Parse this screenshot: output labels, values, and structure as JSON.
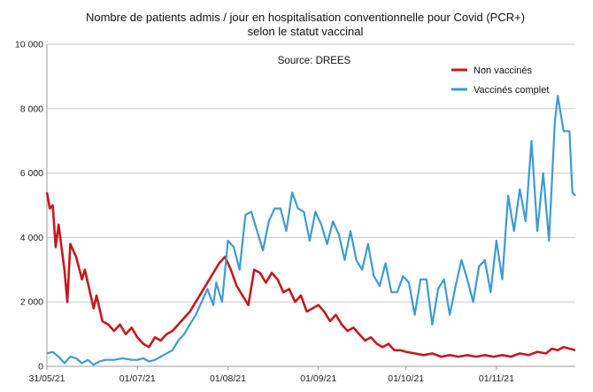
{
  "chart_data": {
    "type": "line",
    "title_line1": "Nombre de patients admis / jour en hospitalisation conventionnelle pour Covid (PCR+)",
    "title_line2": "selon le statut vaccinal",
    "source": "Source: DREES",
    "xlabel": "",
    "ylabel": "",
    "ylim": [
      0,
      10000
    ],
    "yticks": [
      0,
      2000,
      4000,
      6000,
      8000,
      10000
    ],
    "ytick_labels": [
      "0",
      "2 000",
      "4 000",
      "6 000",
      "8 000",
      "10 000"
    ],
    "xlim": [
      "2021-05-31",
      "2021-11-28"
    ],
    "xticks": [
      {
        "date": "2021-05-31",
        "label": "31/05/21"
      },
      {
        "date": "2021-07-01",
        "label": "01/07/21"
      },
      {
        "date": "2021-08-01",
        "label": "01/08/21"
      },
      {
        "date": "2021-09-01",
        "label": "01/09/21"
      },
      {
        "date": "2021-10-01",
        "label": "01/10/21"
      },
      {
        "date": "2021-11-01",
        "label": "01/11/21"
      }
    ],
    "grid": "horizontal",
    "legend_position": "top-right",
    "series": [
      {
        "name": "Non vaccinés",
        "color": "#c8171e",
        "points": [
          [
            "2021-05-31",
            5400
          ],
          [
            "2021-06-01",
            4900
          ],
          [
            "2021-06-02",
            5000
          ],
          [
            "2021-06-03",
            3700
          ],
          [
            "2021-06-04",
            4400
          ],
          [
            "2021-06-06",
            3000
          ],
          [
            "2021-06-07",
            2000
          ],
          [
            "2021-06-08",
            3800
          ],
          [
            "2021-06-10",
            3400
          ],
          [
            "2021-06-12",
            2700
          ],
          [
            "2021-06-13",
            3000
          ],
          [
            "2021-06-15",
            2200
          ],
          [
            "2021-06-16",
            1800
          ],
          [
            "2021-06-17",
            2200
          ],
          [
            "2021-06-19",
            1400
          ],
          [
            "2021-06-21",
            1300
          ],
          [
            "2021-06-23",
            1100
          ],
          [
            "2021-06-25",
            1300
          ],
          [
            "2021-06-27",
            1000
          ],
          [
            "2021-06-29",
            1200
          ],
          [
            "2021-07-01",
            900
          ],
          [
            "2021-07-03",
            700
          ],
          [
            "2021-07-05",
            600
          ],
          [
            "2021-07-07",
            900
          ],
          [
            "2021-07-09",
            800
          ],
          [
            "2021-07-11",
            1000
          ],
          [
            "2021-07-13",
            1100
          ],
          [
            "2021-07-15",
            1300
          ],
          [
            "2021-07-17",
            1500
          ],
          [
            "2021-07-19",
            1700
          ],
          [
            "2021-07-21",
            2000
          ],
          [
            "2021-07-23",
            2300
          ],
          [
            "2021-07-25",
            2600
          ],
          [
            "2021-07-27",
            2900
          ],
          [
            "2021-07-29",
            3200
          ],
          [
            "2021-07-31",
            3400
          ],
          [
            "2021-08-02",
            3000
          ],
          [
            "2021-08-04",
            2500
          ],
          [
            "2021-08-06",
            2200
          ],
          [
            "2021-08-08",
            1900
          ],
          [
            "2021-08-10",
            3000
          ],
          [
            "2021-08-12",
            2900
          ],
          [
            "2021-08-14",
            2600
          ],
          [
            "2021-08-16",
            2900
          ],
          [
            "2021-08-18",
            2700
          ],
          [
            "2021-08-20",
            2300
          ],
          [
            "2021-08-22",
            2400
          ],
          [
            "2021-08-24",
            2000
          ],
          [
            "2021-08-26",
            2200
          ],
          [
            "2021-08-28",
            1700
          ],
          [
            "2021-08-30",
            1800
          ],
          [
            "2021-09-01",
            1900
          ],
          [
            "2021-09-03",
            1700
          ],
          [
            "2021-09-05",
            1400
          ],
          [
            "2021-09-07",
            1600
          ],
          [
            "2021-09-09",
            1300
          ],
          [
            "2021-09-11",
            1100
          ],
          [
            "2021-09-13",
            1200
          ],
          [
            "2021-09-15",
            1000
          ],
          [
            "2021-09-17",
            800
          ],
          [
            "2021-09-19",
            900
          ],
          [
            "2021-09-21",
            700
          ],
          [
            "2021-09-23",
            600
          ],
          [
            "2021-09-25",
            700
          ],
          [
            "2021-09-27",
            500
          ],
          [
            "2021-09-29",
            500
          ],
          [
            "2021-10-01",
            450
          ],
          [
            "2021-10-04",
            400
          ],
          [
            "2021-10-07",
            350
          ],
          [
            "2021-10-10",
            400
          ],
          [
            "2021-10-13",
            300
          ],
          [
            "2021-10-16",
            350
          ],
          [
            "2021-10-19",
            300
          ],
          [
            "2021-10-22",
            350
          ],
          [
            "2021-10-25",
            300
          ],
          [
            "2021-10-28",
            350
          ],
          [
            "2021-10-31",
            300
          ],
          [
            "2021-11-03",
            350
          ],
          [
            "2021-11-06",
            300
          ],
          [
            "2021-11-09",
            400
          ],
          [
            "2021-11-12",
            350
          ],
          [
            "2021-11-15",
            450
          ],
          [
            "2021-11-18",
            400
          ],
          [
            "2021-11-20",
            550
          ],
          [
            "2021-11-22",
            500
          ],
          [
            "2021-11-24",
            600
          ],
          [
            "2021-11-26",
            550
          ],
          [
            "2021-11-28",
            500
          ]
        ]
      },
      {
        "name": "Vaccinés complet",
        "color": "#3c9bd4",
        "points": [
          [
            "2021-05-31",
            400
          ],
          [
            "2021-06-02",
            450
          ],
          [
            "2021-06-04",
            300
          ],
          [
            "2021-06-06",
            100
          ],
          [
            "2021-06-08",
            300
          ],
          [
            "2021-06-10",
            250
          ],
          [
            "2021-06-12",
            100
          ],
          [
            "2021-06-14",
            200
          ],
          [
            "2021-06-16",
            50
          ],
          [
            "2021-06-18",
            150
          ],
          [
            "2021-06-20",
            200
          ],
          [
            "2021-06-23",
            200
          ],
          [
            "2021-06-26",
            250
          ],
          [
            "2021-06-29",
            200
          ],
          [
            "2021-07-01",
            200
          ],
          [
            "2021-07-03",
            250
          ],
          [
            "2021-07-05",
            150
          ],
          [
            "2021-07-07",
            200
          ],
          [
            "2021-07-09",
            300
          ],
          [
            "2021-07-11",
            400
          ],
          [
            "2021-07-13",
            500
          ],
          [
            "2021-07-15",
            800
          ],
          [
            "2021-07-17",
            1000
          ],
          [
            "2021-07-19",
            1300
          ],
          [
            "2021-07-21",
            1600
          ],
          [
            "2021-07-23",
            2000
          ],
          [
            "2021-07-25",
            2400
          ],
          [
            "2021-07-27",
            1900
          ],
          [
            "2021-07-28",
            2600
          ],
          [
            "2021-07-30",
            2000
          ],
          [
            "2021-08-01",
            3900
          ],
          [
            "2021-08-03",
            3700
          ],
          [
            "2021-08-05",
            3000
          ],
          [
            "2021-08-07",
            4700
          ],
          [
            "2021-08-09",
            4800
          ],
          [
            "2021-08-11",
            4200
          ],
          [
            "2021-08-13",
            3600
          ],
          [
            "2021-08-15",
            4500
          ],
          [
            "2021-08-17",
            4900
          ],
          [
            "2021-08-19",
            4900
          ],
          [
            "2021-08-21",
            4200
          ],
          [
            "2021-08-23",
            5400
          ],
          [
            "2021-08-25",
            4900
          ],
          [
            "2021-08-27",
            4800
          ],
          [
            "2021-08-29",
            3900
          ],
          [
            "2021-08-31",
            4800
          ],
          [
            "2021-09-02",
            4400
          ],
          [
            "2021-09-04",
            3800
          ],
          [
            "2021-09-06",
            4500
          ],
          [
            "2021-09-08",
            4100
          ],
          [
            "2021-09-10",
            3300
          ],
          [
            "2021-09-12",
            4200
          ],
          [
            "2021-09-14",
            3300
          ],
          [
            "2021-09-16",
            3000
          ],
          [
            "2021-09-18",
            3800
          ],
          [
            "2021-09-20",
            2800
          ],
          [
            "2021-09-22",
            2500
          ],
          [
            "2021-09-24",
            3200
          ],
          [
            "2021-09-26",
            2300
          ],
          [
            "2021-09-28",
            2300
          ],
          [
            "2021-09-30",
            2800
          ],
          [
            "2021-10-02",
            2600
          ],
          [
            "2021-10-04",
            1600
          ],
          [
            "2021-10-06",
            2700
          ],
          [
            "2021-10-08",
            2700
          ],
          [
            "2021-10-10",
            1300
          ],
          [
            "2021-10-12",
            2400
          ],
          [
            "2021-10-14",
            2700
          ],
          [
            "2021-10-16",
            1600
          ],
          [
            "2021-10-18",
            2500
          ],
          [
            "2021-10-20",
            3300
          ],
          [
            "2021-10-22",
            2700
          ],
          [
            "2021-10-24",
            2000
          ],
          [
            "2021-10-26",
            3100
          ],
          [
            "2021-10-28",
            3300
          ],
          [
            "2021-10-30",
            2300
          ],
          [
            "2021-11-01",
            3900
          ],
          [
            "2021-11-03",
            2700
          ],
          [
            "2021-11-05",
            5300
          ],
          [
            "2021-11-07",
            4200
          ],
          [
            "2021-11-09",
            5500
          ],
          [
            "2021-11-11",
            4500
          ],
          [
            "2021-11-13",
            7000
          ],
          [
            "2021-11-15",
            4200
          ],
          [
            "2021-11-17",
            6000
          ],
          [
            "2021-11-19",
            3900
          ],
          [
            "2021-11-21",
            7600
          ],
          [
            "2021-11-22",
            8400
          ],
          [
            "2021-11-24",
            7300
          ],
          [
            "2021-11-26",
            7300
          ],
          [
            "2021-11-27",
            5400
          ],
          [
            "2021-11-28",
            5300
          ]
        ]
      }
    ]
  }
}
